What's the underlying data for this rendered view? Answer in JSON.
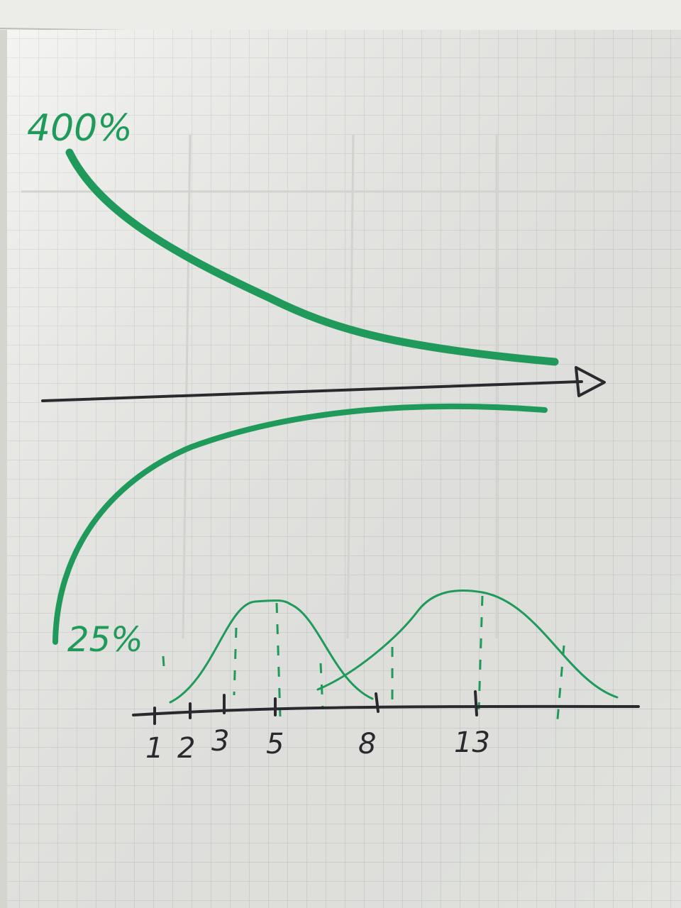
{
  "colors": {
    "paper": "#f1f2ee",
    "grid": "#c9cdd0",
    "green_marker": "#1f9a5a",
    "black_marker": "#2a2a2e",
    "ghost_text": "#c8c8c8"
  },
  "labels": {
    "top_percent": "400%",
    "bottom_percent": "25%"
  },
  "axis_ticks": [
    "1",
    "2",
    "3",
    "5",
    "8",
    "13"
  ]
}
